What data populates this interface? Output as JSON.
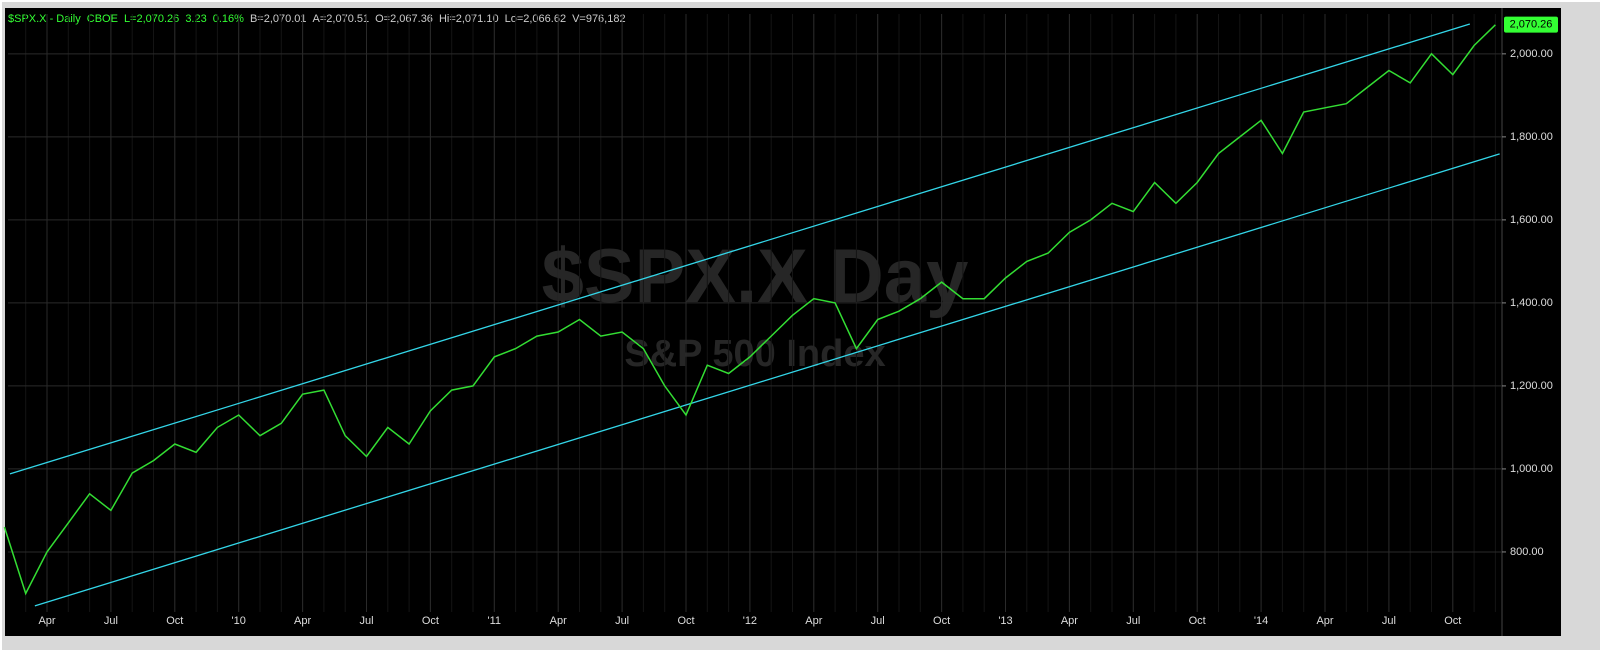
{
  "chart_data": {
    "type": "line",
    "header": [
      {
        "text": "$SPX.X - Daily",
        "color": "#33ff33"
      },
      {
        "text": "CBOE",
        "color": "#33ff33"
      },
      {
        "text": "L=2,070.26",
        "color": "#33ff33"
      },
      {
        "text": "3.23",
        "color": "#33ff33"
      },
      {
        "text": "0.16%",
        "color": "#33ff33"
      },
      {
        "text": "B=2,070.01",
        "color": "#cccccc"
      },
      {
        "text": "A=2,070.51",
        "color": "#cccccc"
      },
      {
        "text": "O=2,067.36",
        "color": "#cccccc"
      },
      {
        "text": "Hi=2,071.10",
        "color": "#cccccc"
      },
      {
        "text": "Lo=2,066.62",
        "color": "#cccccc"
      },
      {
        "text": "V=976,182",
        "color": "#cccccc"
      }
    ],
    "watermark": "$SPX.X Day",
    "watermark_subtitle": "S&P 500 Index",
    "last_price": {
      "value": 2070.26,
      "label": "2,070.26"
    },
    "categories": [
      null,
      null,
      "Apr",
      null,
      null,
      "Jul",
      null,
      null,
      "Oct",
      null,
      null,
      "'10",
      null,
      null,
      "Apr",
      null,
      null,
      "Jul",
      null,
      null,
      "Oct",
      null,
      null,
      "'11",
      null,
      null,
      "Apr",
      null,
      null,
      "Jul",
      null,
      null,
      "Oct",
      null,
      null,
      "'12",
      null,
      null,
      "Apr",
      null,
      null,
      "Jul",
      null,
      null,
      "Oct",
      null,
      null,
      "'13",
      null,
      null,
      "Apr",
      null,
      null,
      "Jul",
      null,
      null,
      "Oct",
      null,
      null,
      "'14",
      null,
      null,
      "Apr",
      null,
      null,
      "Jul",
      null,
      null,
      "Oct",
      null,
      null
    ],
    "values": [
      860,
      700,
      800,
      870,
      940,
      900,
      990,
      1020,
      1060,
      1040,
      1100,
      1130,
      1080,
      1110,
      1180,
      1190,
      1080,
      1030,
      1100,
      1060,
      1140,
      1190,
      1200,
      1270,
      1290,
      1320,
      1330,
      1360,
      1320,
      1330,
      1290,
      1200,
      1130,
      1250,
      1230,
      1270,
      1320,
      1370,
      1410,
      1400,
      1290,
      1360,
      1380,
      1410,
      1450,
      1410,
      1410,
      1460,
      1500,
      1520,
      1570,
      1600,
      1640,
      1620,
      1690,
      1640,
      1690,
      1760,
      1800,
      1840,
      1760,
      1860,
      1870,
      1880,
      1920,
      1960,
      1930,
      2000,
      1950,
      2020,
      2070
    ],
    "color": "#33dd33",
    "channel_lines": [
      {
        "from": [
          0.26,
          988
        ],
        "to": [
          68.8,
          2072
        ],
        "color": "#33d6e8"
      },
      {
        "from": [
          1.43,
          670
        ],
        "to": [
          70.2,
          1759
        ],
        "color": "#33d6e8"
      }
    ],
    "ylim": [
      624,
      2096
    ],
    "yticks": [
      {
        "value": 800,
        "label": "800.00"
      },
      {
        "value": 1000,
        "label": "1,000.00"
      },
      {
        "value": 1200,
        "label": "1,200.00"
      },
      {
        "value": 1400,
        "label": "1,400.00"
      },
      {
        "value": 1600,
        "label": "1,600.00"
      },
      {
        "value": 1800,
        "label": "1,800.00"
      },
      {
        "value": 2000,
        "label": "2,000.00"
      }
    ],
    "grid": true
  }
}
